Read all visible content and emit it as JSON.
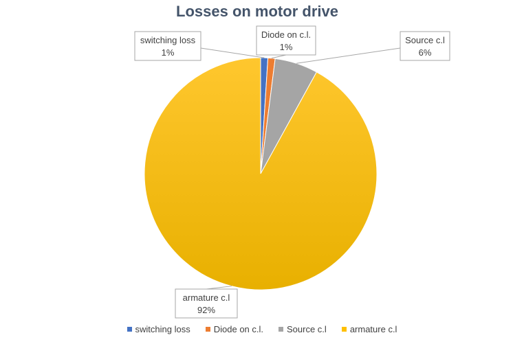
{
  "chart_data": {
    "type": "pie",
    "title": "Losses on motor drive",
    "categories": [
      "switching loss",
      "Diode on c.l.",
      "Source c.l",
      "armature c.l"
    ],
    "values": [
      1,
      1,
      6,
      92
    ],
    "data_labels": [
      "1%",
      "1%",
      "6%",
      "92%"
    ],
    "colors": [
      "#4472c4",
      "#ed7d31",
      "#a5a5a5",
      "#ffc000"
    ],
    "legend_position": "bottom"
  }
}
